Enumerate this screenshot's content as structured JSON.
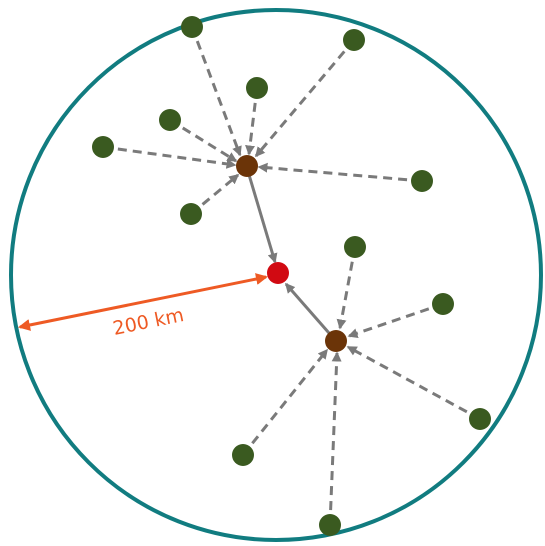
{
  "diagram": {
    "radius_label": "200 km"
  },
  "colors": {
    "boundary": "#117c80",
    "leaf_node": "#3a5a20",
    "hub_node": "#6b3408",
    "center_node": "#d10a12",
    "dashed_link": "#7a7a7a",
    "solid_link": "#7a7a7a",
    "radius_arrow": "#ee5a24"
  },
  "icons": {
    "leaf": "green-circle-node",
    "hub": "brown-circle-node",
    "center": "red-circle-node"
  }
}
